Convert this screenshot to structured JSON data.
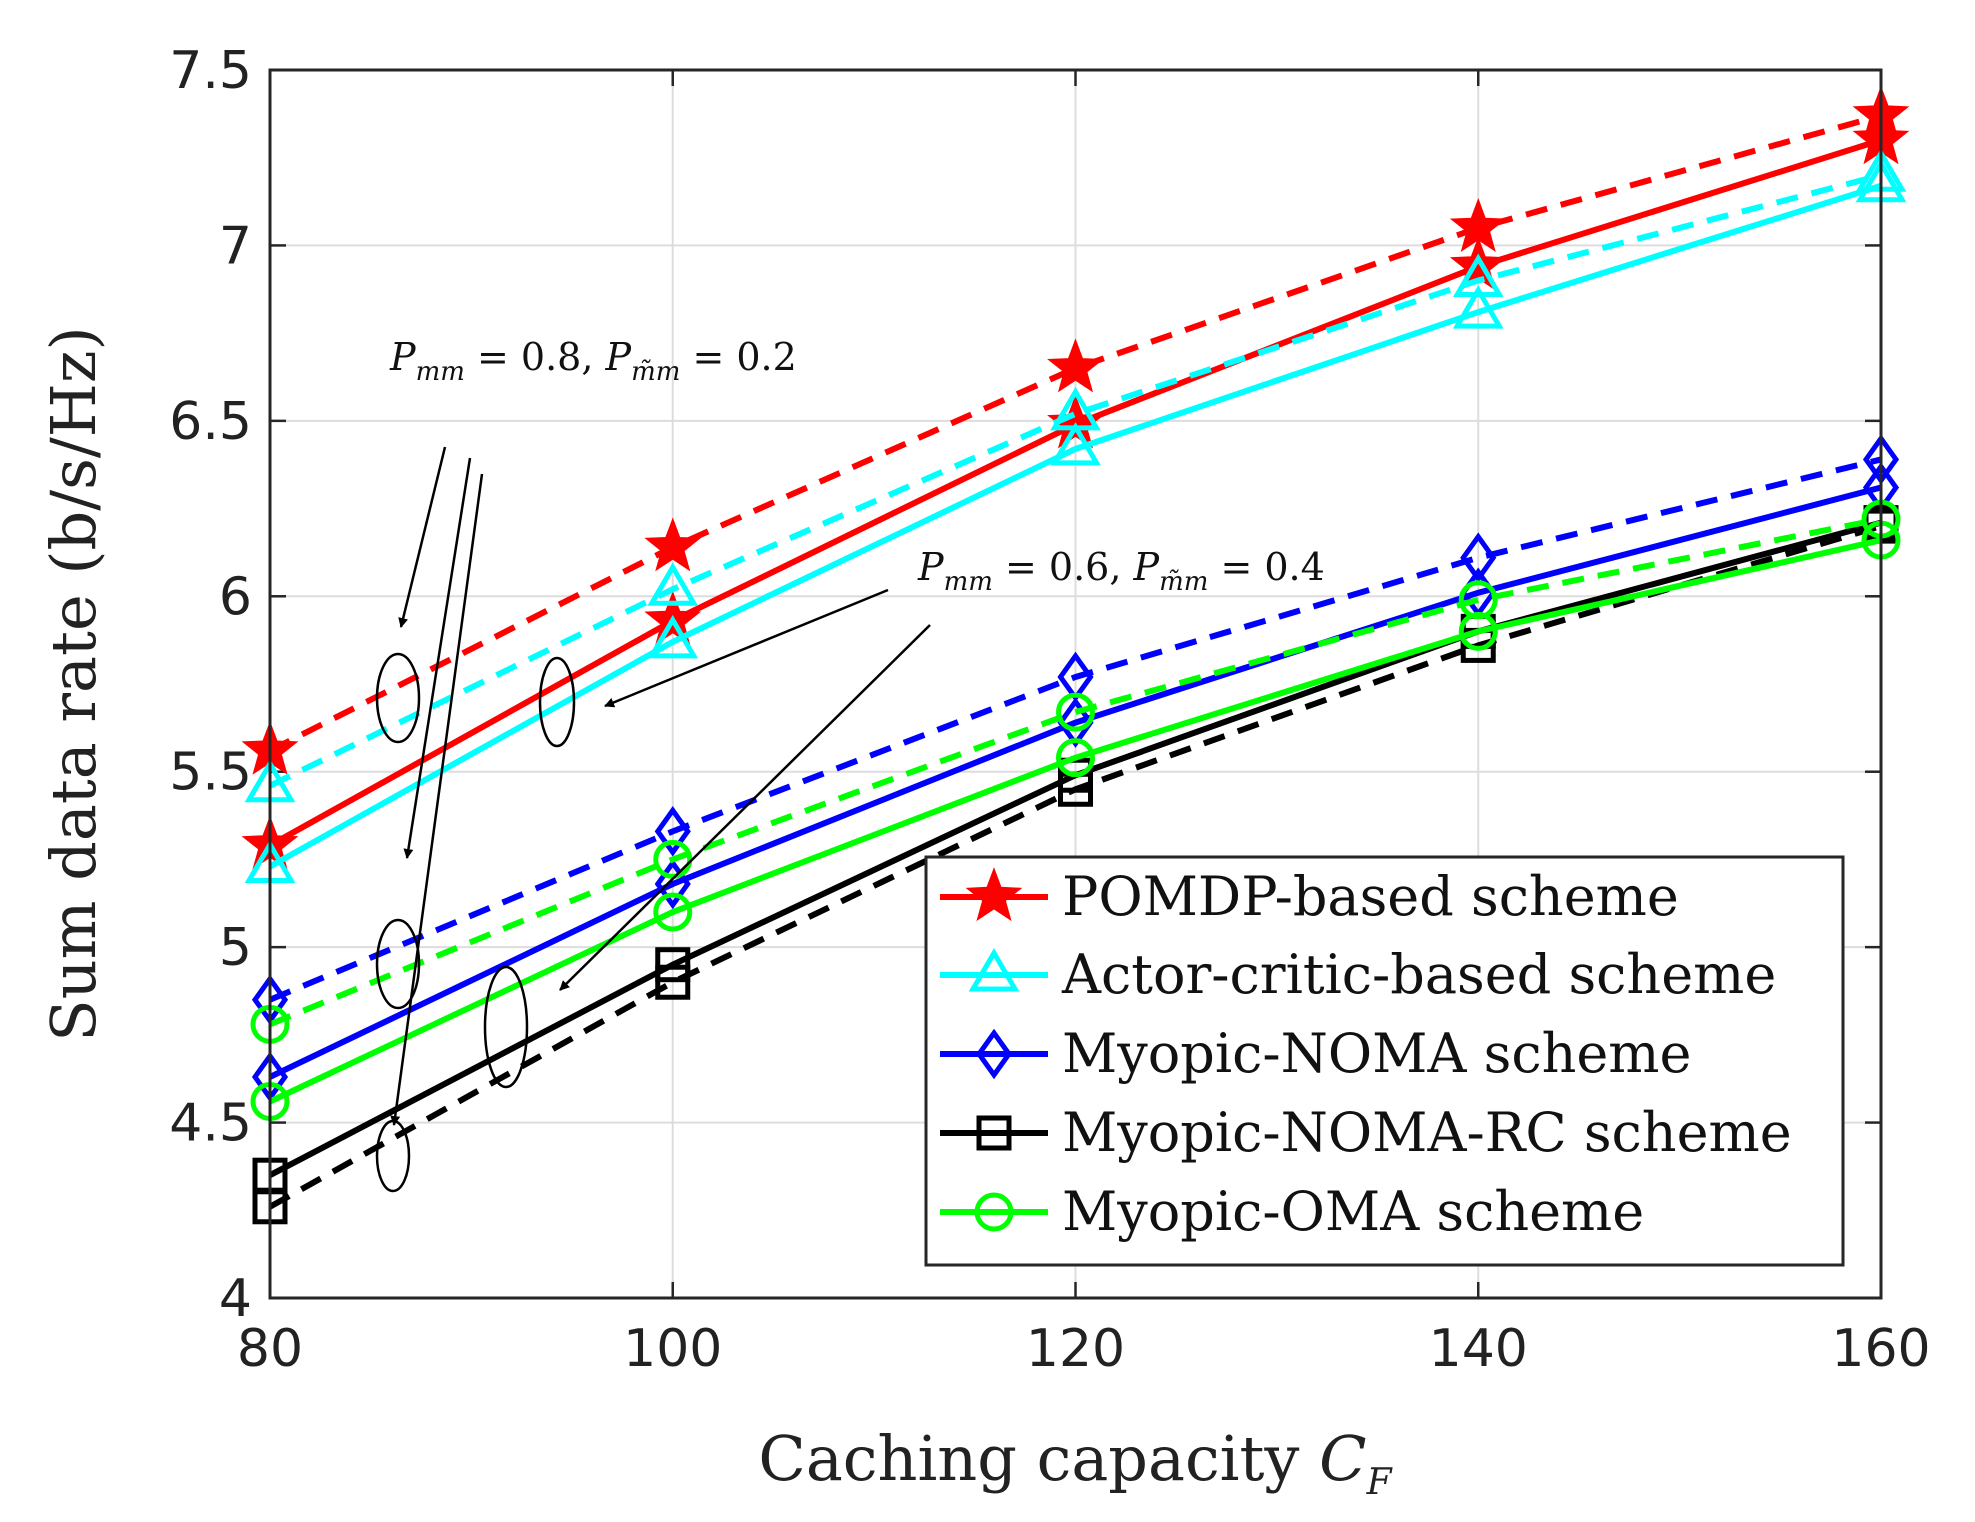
{
  "chart_data": {
    "type": "line",
    "title": "",
    "xlabel": "Caching capacity",
    "xlabel_symbol": "C",
    "xlabel_symbol_sub": "F",
    "ylabel": "Sum data rate (b/s/Hz)",
    "x": [
      80,
      100,
      120,
      140,
      160
    ],
    "xlim": [
      80,
      160
    ],
    "ylim": [
      4,
      7.5
    ],
    "xticks": [
      "80",
      "100",
      "120",
      "140",
      "160"
    ],
    "yticks": [
      "4",
      "4.5",
      "5",
      "5.5",
      "6",
      "6.5",
      "7",
      "7.5"
    ],
    "grid": true,
    "legend_position": "lower-right",
    "series": [
      {
        "name": "POMDP-based scheme",
        "color": "#ff0000",
        "marker": "star",
        "values": [
          5.29,
          5.93,
          6.49,
          6.94,
          7.3
        ],
        "alt_values": [
          5.56,
          6.14,
          6.65,
          7.05,
          7.37
        ]
      },
      {
        "name": "Actor-critic-based scheme",
        "color": "#00ffff",
        "marker": "triangle",
        "values": [
          5.23,
          5.87,
          6.42,
          6.81,
          7.17
        ],
        "alt_values": [
          5.46,
          6.02,
          6.52,
          6.9,
          7.2
        ]
      },
      {
        "name": "Myopic-NOMA scheme",
        "color": "#0000ff",
        "marker": "diamond",
        "values": [
          4.63,
          5.18,
          5.64,
          6.01,
          6.31
        ],
        "alt_values": [
          4.85,
          5.33,
          5.77,
          6.11,
          6.39
        ]
      },
      {
        "name": "Myopic-NOMA-RC scheme",
        "color": "#000000",
        "marker": "square",
        "values": [
          4.35,
          4.95,
          5.49,
          5.9,
          6.21
        ],
        "alt_values": [
          4.26,
          4.9,
          5.45,
          5.86,
          6.2
        ]
      },
      {
        "name": "Myopic-OMA scheme",
        "color": "#00ff00",
        "marker": "circle",
        "values": [
          4.56,
          5.1,
          5.54,
          5.9,
          6.16
        ],
        "alt_values": [
          4.78,
          5.25,
          5.67,
          5.99,
          6.22
        ]
      }
    ],
    "annotations": [
      {
        "text": "P_mm = 0.8, P_m̃m = 0.2",
        "applies_to": "dashed lines"
      },
      {
        "text": "P_mm = 0.6, P_m̃m = 0.4",
        "applies_to": "solid lines"
      }
    ]
  },
  "annotation_labels": {
    "upper": {
      "p1": "P",
      "s1": "mm",
      "v1": " = 0.8, ",
      "p2": "P",
      "s2": "m̃m",
      "v2": " = 0.2"
    },
    "lower": {
      "p1": "P",
      "s1": "mm",
      "v1": " = 0.6, ",
      "p2": "P",
      "s2": "m̃m",
      "v2": " = 0.4"
    }
  }
}
